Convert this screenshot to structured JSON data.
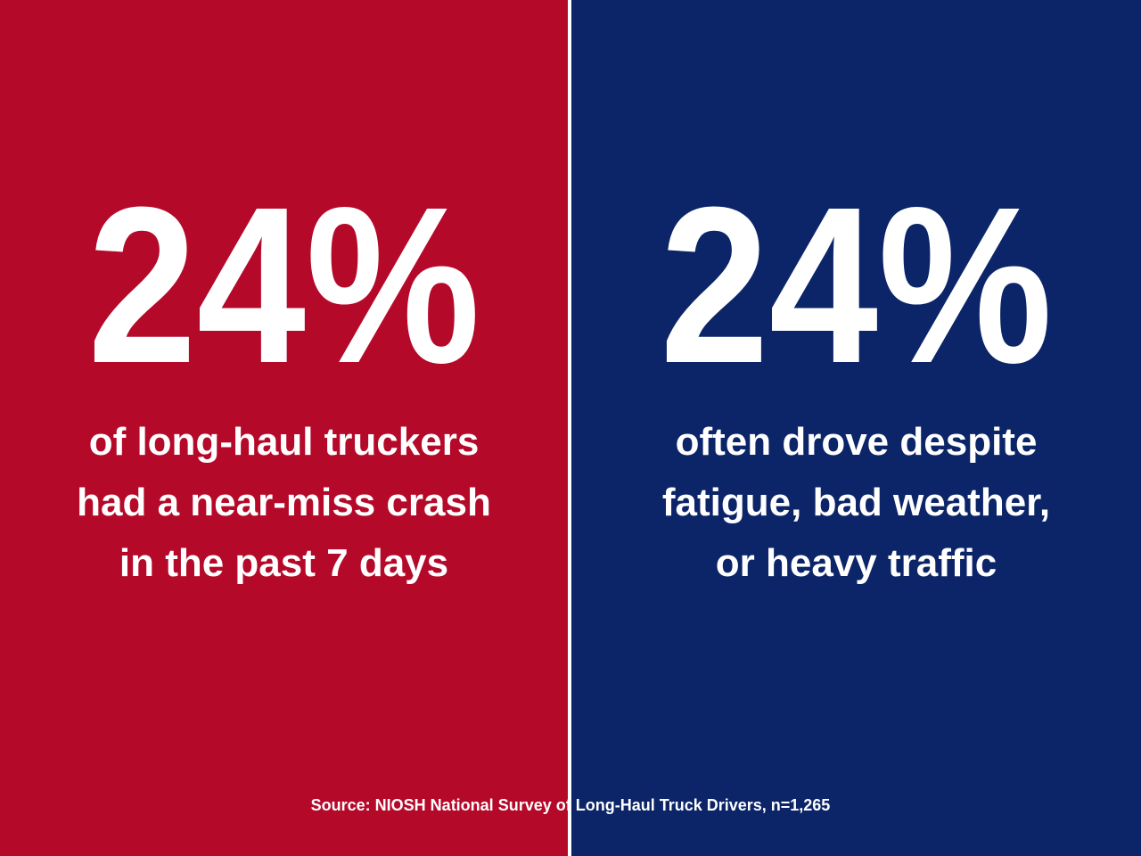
{
  "panels": [
    {
      "stat": "24%",
      "lines": [
        "of long-haul truckers",
        "had a near-miss crash",
        "in the past 7 days"
      ]
    },
    {
      "stat": "24%",
      "lines": [
        "often drove despite",
        "fatigue, bad weather,",
        "or heavy traffic"
      ]
    }
  ],
  "source": "Source: NIOSH National Survey of Long-Haul Truck Drivers, n=1,265"
}
